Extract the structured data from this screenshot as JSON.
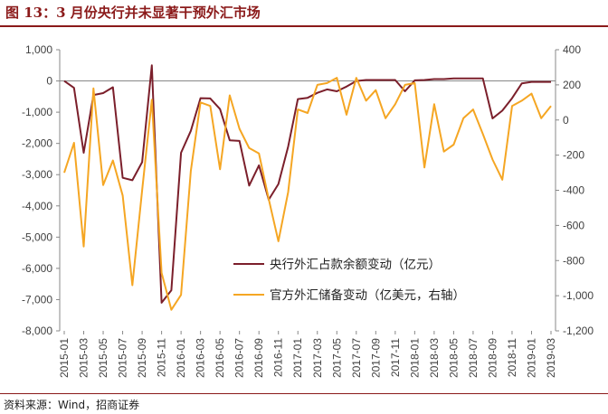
{
  "header": {
    "title": "图 13：3 月份央行并未显著干预外汇市场"
  },
  "footer": {
    "source": "资料来源：Wind，招商证券"
  },
  "chart_data": {
    "type": "line",
    "x": [
      "2015-01",
      "2015-02",
      "2015-03",
      "2015-04",
      "2015-05",
      "2015-06",
      "2015-07",
      "2015-08",
      "2015-09",
      "2015-10",
      "2015-11",
      "2015-12",
      "2016-01",
      "2016-02",
      "2016-03",
      "2016-04",
      "2016-05",
      "2016-06",
      "2016-07",
      "2016-08",
      "2016-09",
      "2016-10",
      "2016-11",
      "2016-12",
      "2017-01",
      "2017-02",
      "2017-03",
      "2017-04",
      "2017-05",
      "2017-06",
      "2017-07",
      "2017-08",
      "2017-09",
      "2017-10",
      "2017-11",
      "2017-12",
      "2018-01",
      "2018-02",
      "2018-03",
      "2018-04",
      "2018-05",
      "2018-06",
      "2018-07",
      "2018-08",
      "2018-09",
      "2018-10",
      "2018-11",
      "2018-12",
      "2019-01",
      "2019-02",
      "2019-03"
    ],
    "xticks": [
      "2015-01",
      "2015-03",
      "2015-05",
      "2015-07",
      "2015-09",
      "2015-11",
      "2016-01",
      "2016-03",
      "2016-05",
      "2016-07",
      "2016-09",
      "2016-11",
      "2017-01",
      "2017-03",
      "2017-05",
      "2017-07",
      "2017-09",
      "2017-11",
      "2018-01",
      "2018-03",
      "2018-05",
      "2018-07",
      "2018-09",
      "2018-11",
      "2019-01",
      "2019-03"
    ],
    "yleft": {
      "ylim": [
        -8000,
        1000
      ],
      "ticks": [
        "1,000",
        "0",
        "-1,000",
        "-2,000",
        "-3,000",
        "-4,000",
        "-5,000",
        "-6,000",
        "-7,000",
        "-8,000"
      ]
    },
    "yright": {
      "ylim": [
        -1200,
        400
      ],
      "ticks": [
        "400",
        "200",
        "0",
        "-200",
        "-400",
        "-600",
        "-800",
        "-1,000",
        "-1,200"
      ]
    },
    "series": [
      {
        "name": "央行外汇占款余额变动（亿元）",
        "axis": "left",
        "color": "#7B1F2B",
        "values": [
          0,
          -220,
          -2300,
          -450,
          -390,
          -200,
          -3100,
          -3180,
          -2600,
          500,
          -7100,
          -6700,
          -2300,
          -1600,
          -550,
          -560,
          -900,
          -1900,
          -1920,
          -3350,
          -2700,
          -3800,
          -3300,
          -2100,
          -580,
          -540,
          -380,
          -270,
          -330,
          -180,
          0,
          30,
          30,
          30,
          30,
          -330,
          20,
          30,
          60,
          60,
          80,
          80,
          80,
          80,
          -1200,
          -950,
          -550,
          -80,
          -30,
          -30,
          -30
        ]
      },
      {
        "name": "官方外汇储备变动（亿美元，右轴）",
        "axis": "right",
        "color": "#F5A623",
        "values": [
          -300,
          -130,
          -720,
          180,
          -370,
          -230,
          -430,
          -940,
          -400,
          115,
          -870,
          -1080,
          -995,
          -290,
          100,
          80,
          -280,
          140,
          -50,
          -160,
          -190,
          -450,
          -690,
          -410,
          60,
          40,
          200,
          210,
          240,
          30,
          240,
          110,
          170,
          10,
          90,
          200,
          210,
          -270,
          90,
          -180,
          -140,
          10,
          60,
          -80,
          -225,
          -340,
          80,
          110,
          150,
          10,
          80
        ]
      }
    ],
    "legend_position": "lower-right",
    "title": "",
    "xlabel": "",
    "ylabel": ""
  }
}
